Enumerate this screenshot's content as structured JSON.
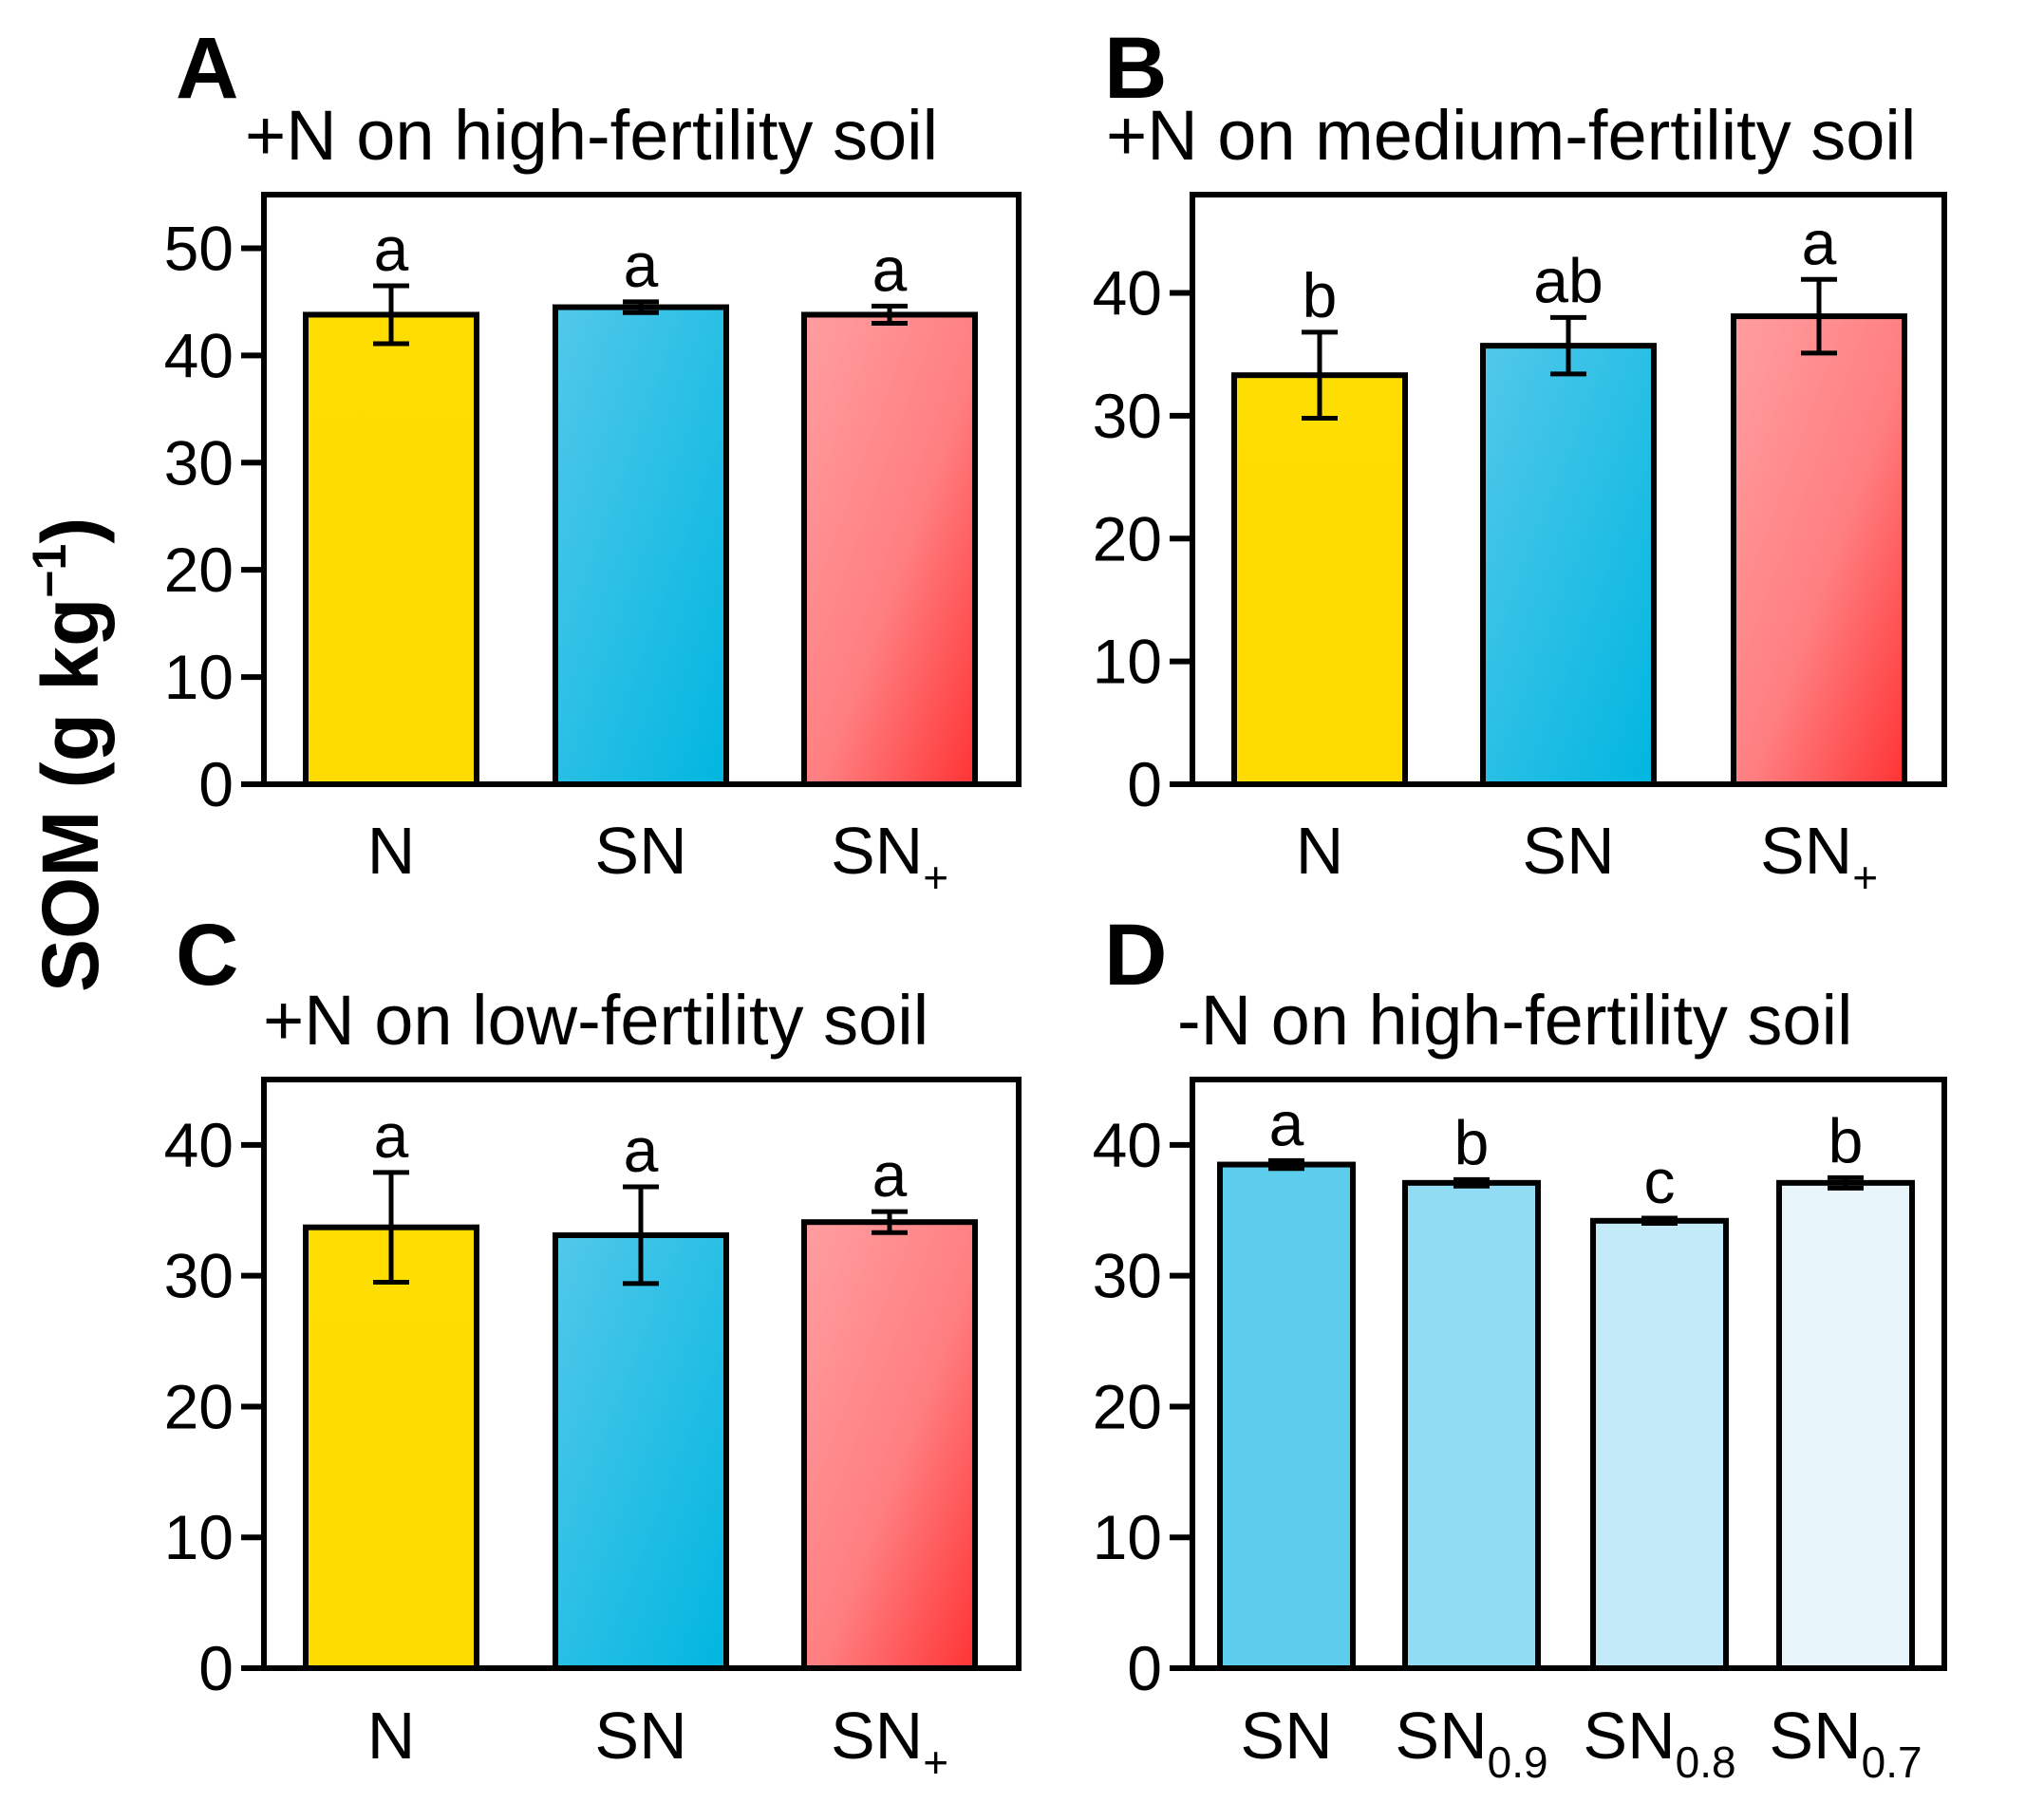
{
  "figure": {
    "ylabel": "SOM (g kg",
    "ylabel_sup": "−1",
    "ylabel_close": ")"
  },
  "chart_data": [
    {
      "type": "bar",
      "letter": "A",
      "title": "+N on high-fertility soil",
      "ylim": [
        0,
        55
      ],
      "yticks": [
        0,
        10,
        20,
        30,
        40,
        50
      ],
      "categories": [
        {
          "name": "N",
          "sub": ""
        },
        {
          "name": "SN",
          "sub": ""
        },
        {
          "name": "SN",
          "sub": "+"
        }
      ],
      "values": [
        43.8,
        44.5,
        43.8
      ],
      "errors": [
        2.7,
        0.5,
        0.8
      ],
      "significance": [
        "a",
        "a",
        "a"
      ],
      "fills": [
        "yellow",
        "cyan",
        "red"
      ]
    },
    {
      "type": "bar",
      "letter": "B",
      "title": "+N on medium-fertility soil",
      "ylim": [
        0,
        48
      ],
      "yticks": [
        0,
        10,
        20,
        30,
        40
      ],
      "categories": [
        {
          "name": "N",
          "sub": ""
        },
        {
          "name": "SN",
          "sub": ""
        },
        {
          "name": "SN",
          "sub": "+"
        }
      ],
      "values": [
        33.3,
        35.7,
        38.1
      ],
      "errors": [
        3.5,
        2.3,
        3.0
      ],
      "significance": [
        "b",
        "ab",
        "a"
      ],
      "fills": [
        "yellow",
        "cyan",
        "red"
      ]
    },
    {
      "type": "bar",
      "letter": "C",
      "title": "+N on low-fertility soil",
      "ylim": [
        0,
        45
      ],
      "yticks": [
        0,
        10,
        20,
        30,
        40
      ],
      "categories": [
        {
          "name": "N",
          "sub": ""
        },
        {
          "name": "SN",
          "sub": ""
        },
        {
          "name": "SN",
          "sub": "+"
        }
      ],
      "values": [
        33.7,
        33.1,
        34.1
      ],
      "errors": [
        4.2,
        3.7,
        0.8
      ],
      "significance": [
        "a",
        "a",
        "a"
      ],
      "fills": [
        "yellow",
        "cyan",
        "red"
      ]
    },
    {
      "type": "bar",
      "letter": "D",
      "title": "-N on high-fertility soil",
      "ylim": [
        0,
        45
      ],
      "yticks": [
        0,
        10,
        20,
        30,
        40
      ],
      "categories": [
        {
          "name": "SN",
          "sub": ""
        },
        {
          "name": "SN",
          "sub": "0.9"
        },
        {
          "name": "SN",
          "sub": "0.8"
        },
        {
          "name": "SN",
          "sub": "0.7"
        }
      ],
      "values": [
        38.5,
        37.1,
        34.2,
        37.1
      ],
      "errors": [
        0.3,
        0.25,
        0.2,
        0.4
      ],
      "significance": [
        "a",
        "b",
        "c",
        "b"
      ],
      "fills": [
        "#5ccdec",
        "#92dcf3",
        "#c3eaf8",
        "#e8f6fc"
      ]
    }
  ]
}
